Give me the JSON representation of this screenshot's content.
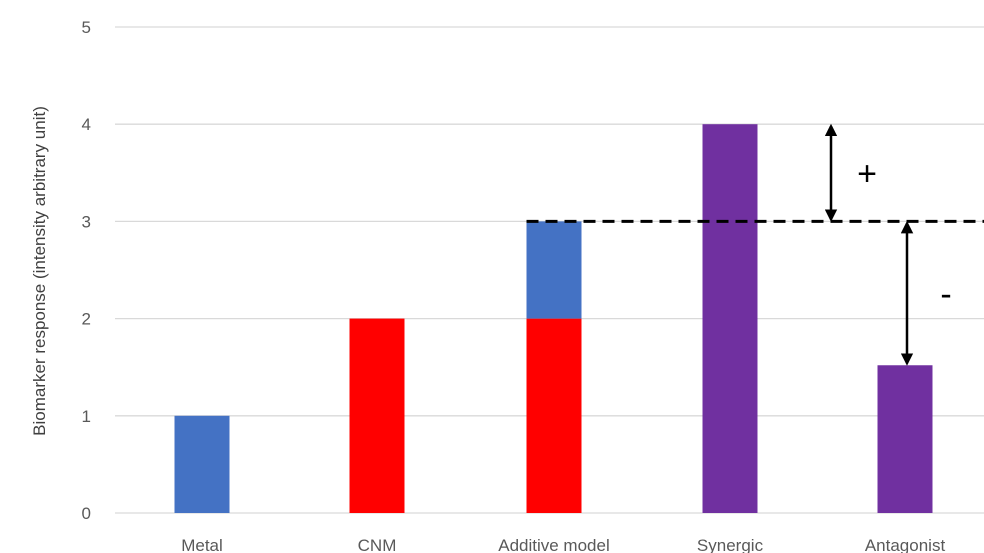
{
  "chart_data": {
    "type": "bar",
    "title": "",
    "xlabel": "",
    "ylabel": "Biomarker response (intensity arbitrary unit)",
    "ylim": [
      0,
      5
    ],
    "yticks": [
      "0",
      "1",
      "2",
      "3",
      "4",
      "5"
    ],
    "grid": true,
    "legend": "none",
    "categories": [
      "Metal",
      "CNM",
      "Additive model",
      "Synergic",
      "Antagonist"
    ],
    "stacks": [
      {
        "category": "Metal",
        "segments": [
          {
            "from": 0,
            "to": 1,
            "color": "#4472C4"
          }
        ]
      },
      {
        "category": "CNM",
        "segments": [
          {
            "from": 0,
            "to": 2,
            "color": "#FF0000"
          }
        ]
      },
      {
        "category": "Additive model",
        "segments": [
          {
            "from": 0,
            "to": 2,
            "color": "#FF0000"
          },
          {
            "from": 2,
            "to": 3,
            "color": "#4472C4"
          }
        ]
      },
      {
        "category": "Synergic",
        "segments": [
          {
            "from": 0,
            "to": 4,
            "color": "#7030A0"
          }
        ]
      },
      {
        "category": "Antagonist",
        "segments": [
          {
            "from": 0,
            "to": 1.52,
            "color": "#7030A0"
          }
        ]
      }
    ],
    "reference_line": {
      "y": 3,
      "style": "dashed",
      "from_category": "Additive model"
    },
    "annotations": [
      {
        "label": "+",
        "from": 3,
        "to": 4,
        "between": [
          "Synergic",
          "Antagonist"
        ]
      },
      {
        "label": "-",
        "from": 1.52,
        "to": 3,
        "between": [
          "Synergic",
          "Antagonist"
        ]
      }
    ]
  }
}
